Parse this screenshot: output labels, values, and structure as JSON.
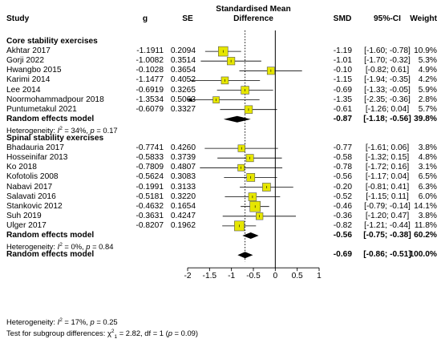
{
  "chart_data": {
    "type": "forest",
    "headers": {
      "study": "Study",
      "g": "g",
      "se": "SE",
      "plot_title_line1": "Standardised Mean",
      "plot_title_line2": "Difference",
      "smd": "SMD",
      "ci": "95%-CI",
      "weight": "Weight"
    },
    "xlim": [
      -2,
      1
    ],
    "xticks": [
      "-2",
      "-1.5",
      "-1",
      "-0.5",
      "0",
      "0.5",
      "1"
    ],
    "tick_values": [
      -2,
      -1.5,
      -1,
      -0.5,
      0,
      0.5,
      1
    ],
    "overall_dashed_line": -0.69,
    "arrow_marker": "←",
    "colors": {
      "box": "#e6e600",
      "diamond": "#000000",
      "line": "#000000"
    },
    "groups": [
      {
        "name": "Core stability exercises",
        "studies": [
          {
            "name": "Akhtar 2017",
            "g": "-1.1911",
            "se": "0.2094",
            "smd": "-1.19",
            "ci": "[-1.60; -0.78]",
            "weight": "10.9%",
            "est": -1.19,
            "lo": -1.6,
            "hi": -0.78,
            "w": 10.9
          },
          {
            "name": "Gorji 2022",
            "g": "-1.0082",
            "se": "0.3514",
            "smd": "-1.01",
            "ci": "[-1.70; -0.32]",
            "weight": "5.3%",
            "est": -1.01,
            "lo": -1.7,
            "hi": -0.32,
            "w": 5.3
          },
          {
            "name": "Hwangbo 2015",
            "g": "-0.1028",
            "se": "0.3654",
            "smd": "-0.10",
            "ci": "[-0.82; 0.61]",
            "weight": "4.9%",
            "est": -0.1,
            "lo": -0.82,
            "hi": 0.61,
            "w": 4.9
          },
          {
            "name": "Karimi 2014",
            "g": "-1.1477",
            "se": "0.4052",
            "smd": "-1.15",
            "ci": "[-1.94; -0.35]",
            "weight": "4.2%",
            "est": -1.15,
            "lo": -1.94,
            "hi": -0.35,
            "w": 4.2
          },
          {
            "name": "Lee 2014",
            "g": "-0.6919",
            "se": "0.3265",
            "smd": "-0.69",
            "ci": "[-1.33; -0.05]",
            "weight": "5.9%",
            "est": -0.69,
            "lo": -1.33,
            "hi": -0.05,
            "w": 5.9
          },
          {
            "name": "Noormohammadpour 2018",
            "g": "-1.3534",
            "se": "0.5063",
            "smd": "-1.35",
            "ci": "[-2.35; -0.36]",
            "weight": "2.8%",
            "est": -1.35,
            "lo": -2.35,
            "hi": -0.36,
            "w": 2.8
          },
          {
            "name": "Puntumetakul 2021",
            "g": "-0.6079",
            "se": "0.3327",
            "smd": "-0.61",
            "ci": "[-1.26; 0.04]",
            "weight": "5.7%",
            "est": -0.61,
            "lo": -1.26,
            "hi": 0.04,
            "w": 5.7
          }
        ],
        "summary": {
          "label": "Random effects model",
          "smd": "-0.87",
          "ci": "[-1.18; -0.56]",
          "weight": "39.8%",
          "est": -0.87,
          "lo": -1.18,
          "hi": -0.56
        },
        "heterogeneity": {
          "prefix": "Heterogeneity: ",
          "i2_label": "I",
          "i2_sup": "2",
          "value": " = 34%, ",
          "p_label": "p",
          "p_value": " = 0.17"
        }
      },
      {
        "name": "Spinal stability exercises",
        "studies": [
          {
            "name": "Bhadauria 2017",
            "g": "-0.7741",
            "se": "0.4260",
            "smd": "-0.77",
            "ci": "[-1.61; 0.06]",
            "weight": "3.8%",
            "est": -0.77,
            "lo": -1.61,
            "hi": 0.06,
            "w": 3.8
          },
          {
            "name": "Hosseinifar 2013",
            "g": "-0.5833",
            "se": "0.3739",
            "smd": "-0.58",
            "ci": "[-1.32; 0.15]",
            "weight": "4.8%",
            "est": -0.58,
            "lo": -1.32,
            "hi": 0.15,
            "w": 4.8
          },
          {
            "name": "Ko 2018",
            "g": "-0.7809",
            "se": "0.4807",
            "smd": "-0.78",
            "ci": "[-1.72; 0.16]",
            "weight": "3.1%",
            "est": -0.78,
            "lo": -1.72,
            "hi": 0.16,
            "w": 3.1
          },
          {
            "name": "Kofotolis 2008",
            "g": "-0.5624",
            "se": "0.3083",
            "smd": "-0.56",
            "ci": "[-1.17; 0.04]",
            "weight": "6.5%",
            "est": -0.56,
            "lo": -1.17,
            "hi": 0.04,
            "w": 6.5
          },
          {
            "name": "Nabavi 2017",
            "g": "-0.1991",
            "se": "0.3133",
            "smd": "-0.20",
            "ci": "[-0.81; 0.41]",
            "weight": "6.3%",
            "est": -0.2,
            "lo": -0.81,
            "hi": 0.41,
            "w": 6.3
          },
          {
            "name": "Salavati 2016",
            "g": "-0.5181",
            "se": "0.3220",
            "smd": "-0.52",
            "ci": "[-1.15; 0.11]",
            "weight": "6.0%",
            "est": -0.52,
            "lo": -1.15,
            "hi": 0.11,
            "w": 6.0
          },
          {
            "name": "Stankovic 2012",
            "g": "-0.4632",
            "se": "0.1654",
            "smd": "-0.46",
            "ci": "[-0.79; -0.14]",
            "weight": "14.1%",
            "est": -0.46,
            "lo": -0.79,
            "hi": -0.14,
            "w": 14.1
          },
          {
            "name": "Suh 2019",
            "g": "-0.3631",
            "se": "0.4247",
            "smd": "-0.36",
            "ci": "[-1.20; 0.47]",
            "weight": "3.8%",
            "est": -0.36,
            "lo": -1.2,
            "hi": 0.47,
            "w": 3.8
          },
          {
            "name": "Ulger 2017",
            "g": "-0.8207",
            "se": "0.1962",
            "smd": "-0.82",
            "ci": "[-1.21; -0.44]",
            "weight": "11.8%",
            "est": -0.82,
            "lo": -1.21,
            "hi": -0.44,
            "w": 11.8
          }
        ],
        "summary": {
          "label": "Random effects model",
          "smd": "-0.56",
          "ci": "[-0.75; -0.38]",
          "weight": "60.2%",
          "est": -0.56,
          "lo": -0.75,
          "hi": -0.38
        },
        "heterogeneity": {
          "prefix": "Heterogeneity: ",
          "i2_label": "I",
          "i2_sup": "2",
          "value": " = 0%, ",
          "p_label": "p",
          "p_value": " = 0.84"
        }
      }
    ],
    "overall": {
      "label": "Random effects model",
      "smd": "-0.69",
      "ci": "[-0.86; -0.51]",
      "weight": "100.0%",
      "est": -0.69,
      "lo": -0.86,
      "hi": -0.51
    },
    "overall_heterogeneity": {
      "prefix": "Heterogeneity: ",
      "i2_label": "I",
      "i2_sup": "2",
      "value": " = 17%, ",
      "p_label": "p",
      "p_value": " = 0.25"
    },
    "subgroup_test": {
      "prefix": "Test for subgroup differences: ",
      "chi_label": "χ",
      "chi_sup": "2",
      "chi_sub": "1",
      "value": " = 2.82, df = 1 (",
      "p_label": "p",
      "p_value": " = 0.09)"
    }
  }
}
